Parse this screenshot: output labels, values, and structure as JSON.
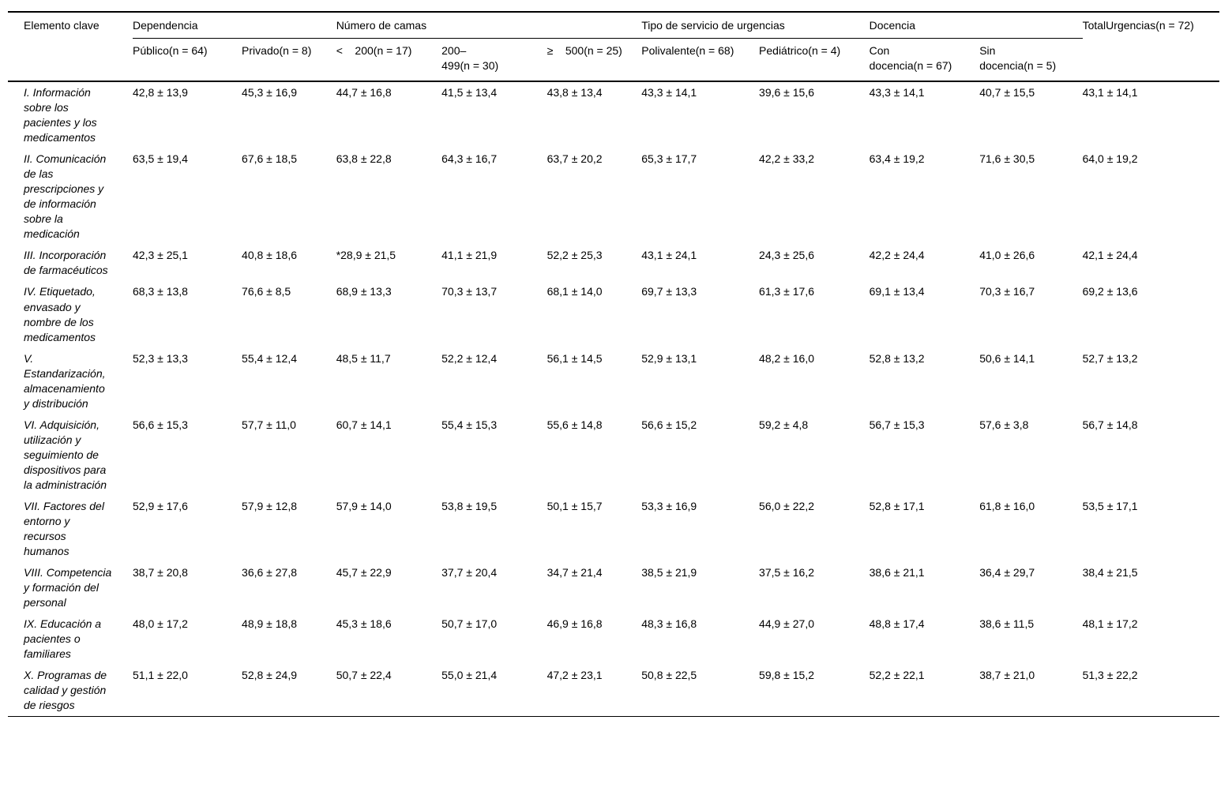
{
  "table": {
    "corner_header": "Elemento clave",
    "total_header": "TotalUrgencias(n = 72)",
    "groups": [
      {
        "label": "Dependencia"
      },
      {
        "label": "Número de camas"
      },
      {
        "label": "Tipo de servicio de urgencias"
      },
      {
        "label": "Docencia"
      }
    ],
    "subheaders": [
      "Público(n = 64)",
      "Privado(n = 8)",
      "<    200(n = 17)",
      "200–\n499(n = 30)",
      "≥    500(n = 25)",
      "Polivalente(n = 68)",
      "Pediátrico(n = 4)",
      "Con\ndocencia(n = 67)",
      "Sin\ndocencia(n = 5)"
    ],
    "rows": [
      {
        "label": "I. Información sobre los pacientes y los medicamentos",
        "values": [
          "42,8 ± 13,9",
          "45,3 ± 16,9",
          "44,7 ± 16,8",
          "41,5 ± 13,4",
          "43,8 ± 13,4",
          "43,3 ± 14,1",
          "39,6 ± 15,6",
          "43,3 ± 14,1",
          "40,7 ± 15,5",
          "43,1 ± 14,1"
        ]
      },
      {
        "label": "II. Comunicación de las prescripciones y de información sobre la medicación",
        "values": [
          "63,5 ± 19,4",
          "67,6 ± 18,5",
          "63,8 ± 22,8",
          "64,3 ± 16,7",
          "63,7 ± 20,2",
          "65,3 ± 17,7",
          "42,2 ± 33,2",
          "63,4 ± 19,2",
          "71,6 ± 30,5",
          "64,0 ± 19,2"
        ]
      },
      {
        "label": "III. Incorporación de farmacéuticos",
        "values": [
          "42,3 ± 25,1",
          "40,8 ± 18,6",
          "*28,9 ± 21,5",
          "41,1 ± 21,9",
          "52,2 ± 25,3",
          "43,1 ± 24,1",
          "24,3 ± 25,6",
          "42,2 ± 24,4",
          "41,0 ± 26,6",
          "42,1 ± 24,4"
        ]
      },
      {
        "label": "IV. Etiquetado, envasado y nombre de los medicamentos",
        "values": [
          "68,3 ± 13,8",
          "76,6 ± 8,5",
          "68,9 ± 13,3",
          "70,3 ± 13,7",
          "68,1 ± 14,0",
          "69,7 ± 13,3",
          "61,3 ± 17,6",
          "69,1 ± 13,4",
          "70,3 ± 16,7",
          "69,2 ± 13,6"
        ]
      },
      {
        "label": "V. Estandarización, almacenamiento y distribución",
        "values": [
          "52,3 ± 13,3",
          "55,4 ± 12,4",
          "48,5 ± 11,7",
          "52,2 ± 12,4",
          "56,1 ± 14,5",
          "52,9 ± 13,1",
          "48,2 ± 16,0",
          "52,8 ± 13,2",
          "50,6 ± 14,1",
          "52,7 ± 13,2"
        ]
      },
      {
        "label": "VI. Adquisición, utilización y seguimiento de dispositivos para la administración",
        "values": [
          "56,6 ± 15,3",
          "57,7 ± 11,0",
          "60,7 ± 14,1",
          "55,4 ± 15,3",
          "55,6 ± 14,8",
          "56,6 ± 15,2",
          "59,2 ± 4,8",
          "56,7 ± 15,3",
          "57,6 ± 3,8",
          "56,7 ± 14,8"
        ]
      },
      {
        "label": "VII. Factores del entorno y recursos humanos",
        "values": [
          "52,9 ± 17,6",
          "57,9 ± 12,8",
          "57,9 ± 14,0",
          "53,8 ± 19,5",
          "50,1 ± 15,7",
          "53,3 ± 16,9",
          "56,0 ± 22,2",
          "52,8 ± 17,1",
          "61,8 ± 16,0",
          "53,5 ± 17,1"
        ]
      },
      {
        "label": "VIII. Competencia y formación del personal",
        "values": [
          "38,7 ± 20,8",
          "36,6 ± 27,8",
          "45,7 ± 22,9",
          "37,7 ± 20,4",
          "34,7 ± 21,4",
          "38,5 ± 21,9",
          "37,5 ± 16,2",
          "38,6 ± 21,1",
          "36,4 ± 29,7",
          "38,4 ± 21,5"
        ]
      },
      {
        "label": "IX. Educación a pacientes o familiares",
        "values": [
          "48,0 ± 17,2",
          "48,9 ± 18,8",
          "45,3 ± 18,6",
          "50,7 ± 17,0",
          "46,9 ± 16,8",
          "48,3 ± 16,8",
          "44,9 ± 27,0",
          "48,8 ± 17,4",
          "38,6 ± 11,5",
          "48,1 ± 17,2"
        ]
      },
      {
        "label": "X. Programas de calidad y gestión de riesgos",
        "values": [
          "51,1 ± 22,0",
          "52,8 ± 24,9",
          "50,7 ± 22,4",
          "55,0 ± 21,4",
          "47,2 ± 23,1",
          "50,8 ± 22,5",
          "59,8 ± 15,2",
          "52,2 ± 22,1",
          "38,7 ± 21,0",
          "51,3 ± 22,2"
        ]
      }
    ]
  }
}
